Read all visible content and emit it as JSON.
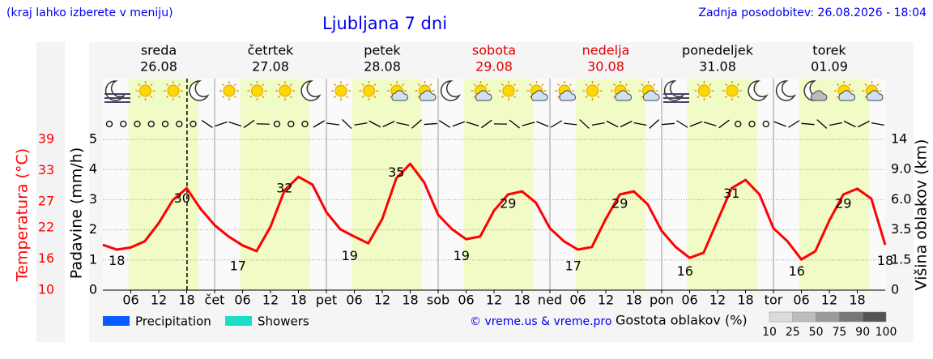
{
  "chart_data": {
    "type": "line",
    "note_left": "(kraj lahko izberete v meniju)",
    "title": "Ljubljana 7 dni",
    "updated": "Zadnja posodobitev: 26.08.2026 - 18:04",
    "days": [
      {
        "name": "sreda",
        "date": "26.08",
        "color": "#000000"
      },
      {
        "name": "četrtek",
        "date": "27.08",
        "color": "#000000"
      },
      {
        "name": "petek",
        "date": "28.08",
        "color": "#000000"
      },
      {
        "name": "sobota",
        "date": "29.08",
        "color": "#dd0000"
      },
      {
        "name": "nedelja",
        "date": "30.08",
        "color": "#dd0000"
      },
      {
        "name": "ponedeljek",
        "date": "31.08",
        "color": "#000000"
      },
      {
        "name": "torek",
        "date": "01.09",
        "color": "#000000"
      }
    ],
    "xlim": [
      0,
      168
    ],
    "xticks": [
      {
        "value": 6,
        "label": "06"
      },
      {
        "value": 12,
        "label": "12"
      },
      {
        "value": 18,
        "label": "18"
      },
      {
        "value": 24,
        "label": "čet"
      },
      {
        "value": 30,
        "label": "06"
      },
      {
        "value": 36,
        "label": "12"
      },
      {
        "value": 42,
        "label": "18"
      },
      {
        "value": 48,
        "label": "pet"
      },
      {
        "value": 54,
        "label": "06"
      },
      {
        "value": 60,
        "label": "12"
      },
      {
        "value": 66,
        "label": "18"
      },
      {
        "value": 72,
        "label": "sob"
      },
      {
        "value": 78,
        "label": "06"
      },
      {
        "value": 84,
        "label": "12"
      },
      {
        "value": 90,
        "label": "18"
      },
      {
        "value": 96,
        "label": "ned"
      },
      {
        "value": 102,
        "label": "06"
      },
      {
        "value": 108,
        "label": "12"
      },
      {
        "value": 114,
        "label": "18"
      },
      {
        "value": 120,
        "label": "pon"
      },
      {
        "value": 126,
        "label": "06"
      },
      {
        "value": 132,
        "label": "12"
      },
      {
        "value": 138,
        "label": "18"
      },
      {
        "value": 144,
        "label": "tor"
      },
      {
        "value": 150,
        "label": "06"
      },
      {
        "value": 156,
        "label": "12"
      },
      {
        "value": 162,
        "label": "18"
      }
    ],
    "temp_axis": {
      "label": "Temperatura (°C)",
      "color": "#ff0000",
      "lim": [
        10,
        39
      ],
      "ticks": [
        10,
        16,
        22,
        27,
        33,
        39
      ]
    },
    "precip_axis": {
      "label": "Padavine (mm/h)",
      "lim": [
        0,
        5
      ],
      "ticks": [
        0,
        1,
        2,
        3,
        4,
        5
      ]
    },
    "cloud_axis": {
      "label": "Višina oblakov (km)",
      "ticks": [
        0,
        1.5,
        3.5,
        {
          "value": 6,
          "label": "6.0"
        },
        {
          "value": 9,
          "label": "9.0"
        },
        14
      ]
    },
    "grid": true,
    "temperature": {
      "color": "#ff0000",
      "x": [
        0,
        3,
        6,
        9,
        12,
        15,
        18,
        21,
        24,
        27,
        30,
        33,
        36,
        39,
        42,
        45,
        48,
        51,
        54,
        57,
        60,
        63,
        66,
        69,
        72,
        75,
        78,
        81,
        84,
        87,
        90,
        93,
        96,
        99,
        102,
        105,
        108,
        111,
        114,
        117,
        120,
        123,
        126,
        129,
        132,
        135,
        138,
        141,
        144,
        147,
        150,
        153,
        156,
        159,
        162,
        165,
        168
      ],
      "values": [
        18.7,
        17.8,
        18.2,
        19.4,
        22.9,
        27.3,
        29.6,
        25.6,
        22.5,
        20.3,
        18.6,
        17.5,
        22.2,
        29.2,
        31.8,
        30.3,
        25.0,
        21.7,
        20.3,
        19.0,
        23.7,
        31.5,
        34.3,
        30.7,
        24.5,
        21.7,
        19.8,
        20.3,
        25.3,
        28.4,
        29.0,
        26.8,
        21.9,
        19.4,
        17.8,
        18.3,
        23.7,
        28.4,
        29.0,
        26.5,
        21.4,
        18.3,
        16.2,
        17.2,
        23.4,
        29.6,
        31.2,
        28.4,
        21.9,
        19.4,
        15.9,
        17.5,
        23.4,
        28.4,
        29.5,
        27.6,
        18.7
      ]
    },
    "temp_labels": [
      {
        "x": 3,
        "value": 18
      },
      {
        "x": 17,
        "value": 30
      },
      {
        "x": 29,
        "value": 17
      },
      {
        "x": 39,
        "value": 32
      },
      {
        "x": 53,
        "value": 19
      },
      {
        "x": 63,
        "value": 35
      },
      {
        "x": 77,
        "value": 19
      },
      {
        "x": 87,
        "value": 29
      },
      {
        "x": 101,
        "value": 17
      },
      {
        "x": 111,
        "value": 29
      },
      {
        "x": 125,
        "value": 16
      },
      {
        "x": 135,
        "value": 31
      },
      {
        "x": 149,
        "value": 16
      },
      {
        "x": 159,
        "value": 29
      },
      {
        "x": 168,
        "value": 18
      }
    ],
    "now": 18.07,
    "legend": [
      {
        "name": "Precipitation",
        "color": "#0a5cff"
      },
      {
        "name": "Showers",
        "color": "#1ddcc8"
      }
    ],
    "credit": "© vreme.us & vreme.pro",
    "cloud_scale": {
      "label": "Gostota oblakov (%)",
      "ticks": [
        10,
        25,
        50,
        75,
        90,
        100
      ],
      "colors": [
        "#dcdcdc",
        "#bdbdbd",
        "#9a9a9a",
        "#777777",
        "#555555"
      ]
    }
  }
}
